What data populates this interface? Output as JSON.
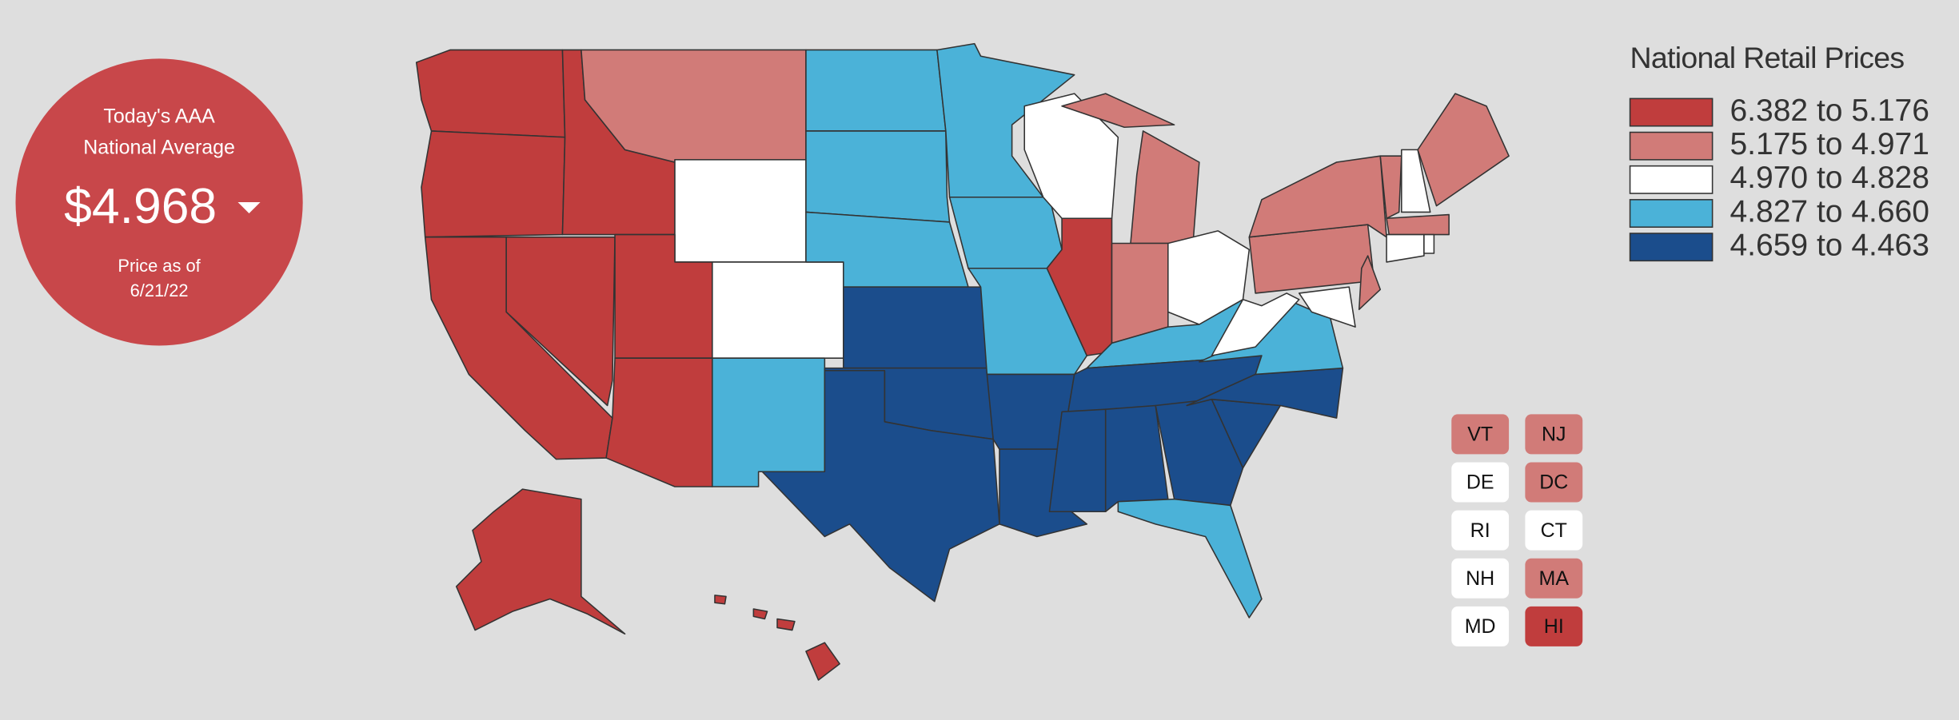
{
  "badge": {
    "line1": "Today's AAA",
    "line2": "National Average",
    "price": "$4.968",
    "date_label": "Price as of",
    "date": "6/21/22"
  },
  "legend": {
    "title": "National Retail Prices",
    "entries": [
      {
        "label": "6.382 to 5.176",
        "color": "#c03d3d"
      },
      {
        "label": "5.175 to 4.971",
        "color": "#d17b78"
      },
      {
        "label": "4.970 to 4.828",
        "color": "#ffffff"
      },
      {
        "label": "4.827 to 4.660",
        "color": "#4bb2d8"
      },
      {
        "label": "4.659 to 4.463",
        "color": "#1b4d8c"
      }
    ]
  },
  "small_states": [
    {
      "label": "VT",
      "color": "#d17b78"
    },
    {
      "label": "NJ",
      "color": "#d17b78"
    },
    {
      "label": "DE",
      "color": "#ffffff"
    },
    {
      "label": "DC",
      "color": "#d17b78"
    },
    {
      "label": "RI",
      "color": "#ffffff"
    },
    {
      "label": "CT",
      "color": "#ffffff"
    },
    {
      "label": "NH",
      "color": "#ffffff"
    },
    {
      "label": "MA",
      "color": "#d17b78"
    },
    {
      "label": "MD",
      "color": "#ffffff"
    },
    {
      "label": "HI",
      "color": "#c03d3d"
    }
  ]
}
